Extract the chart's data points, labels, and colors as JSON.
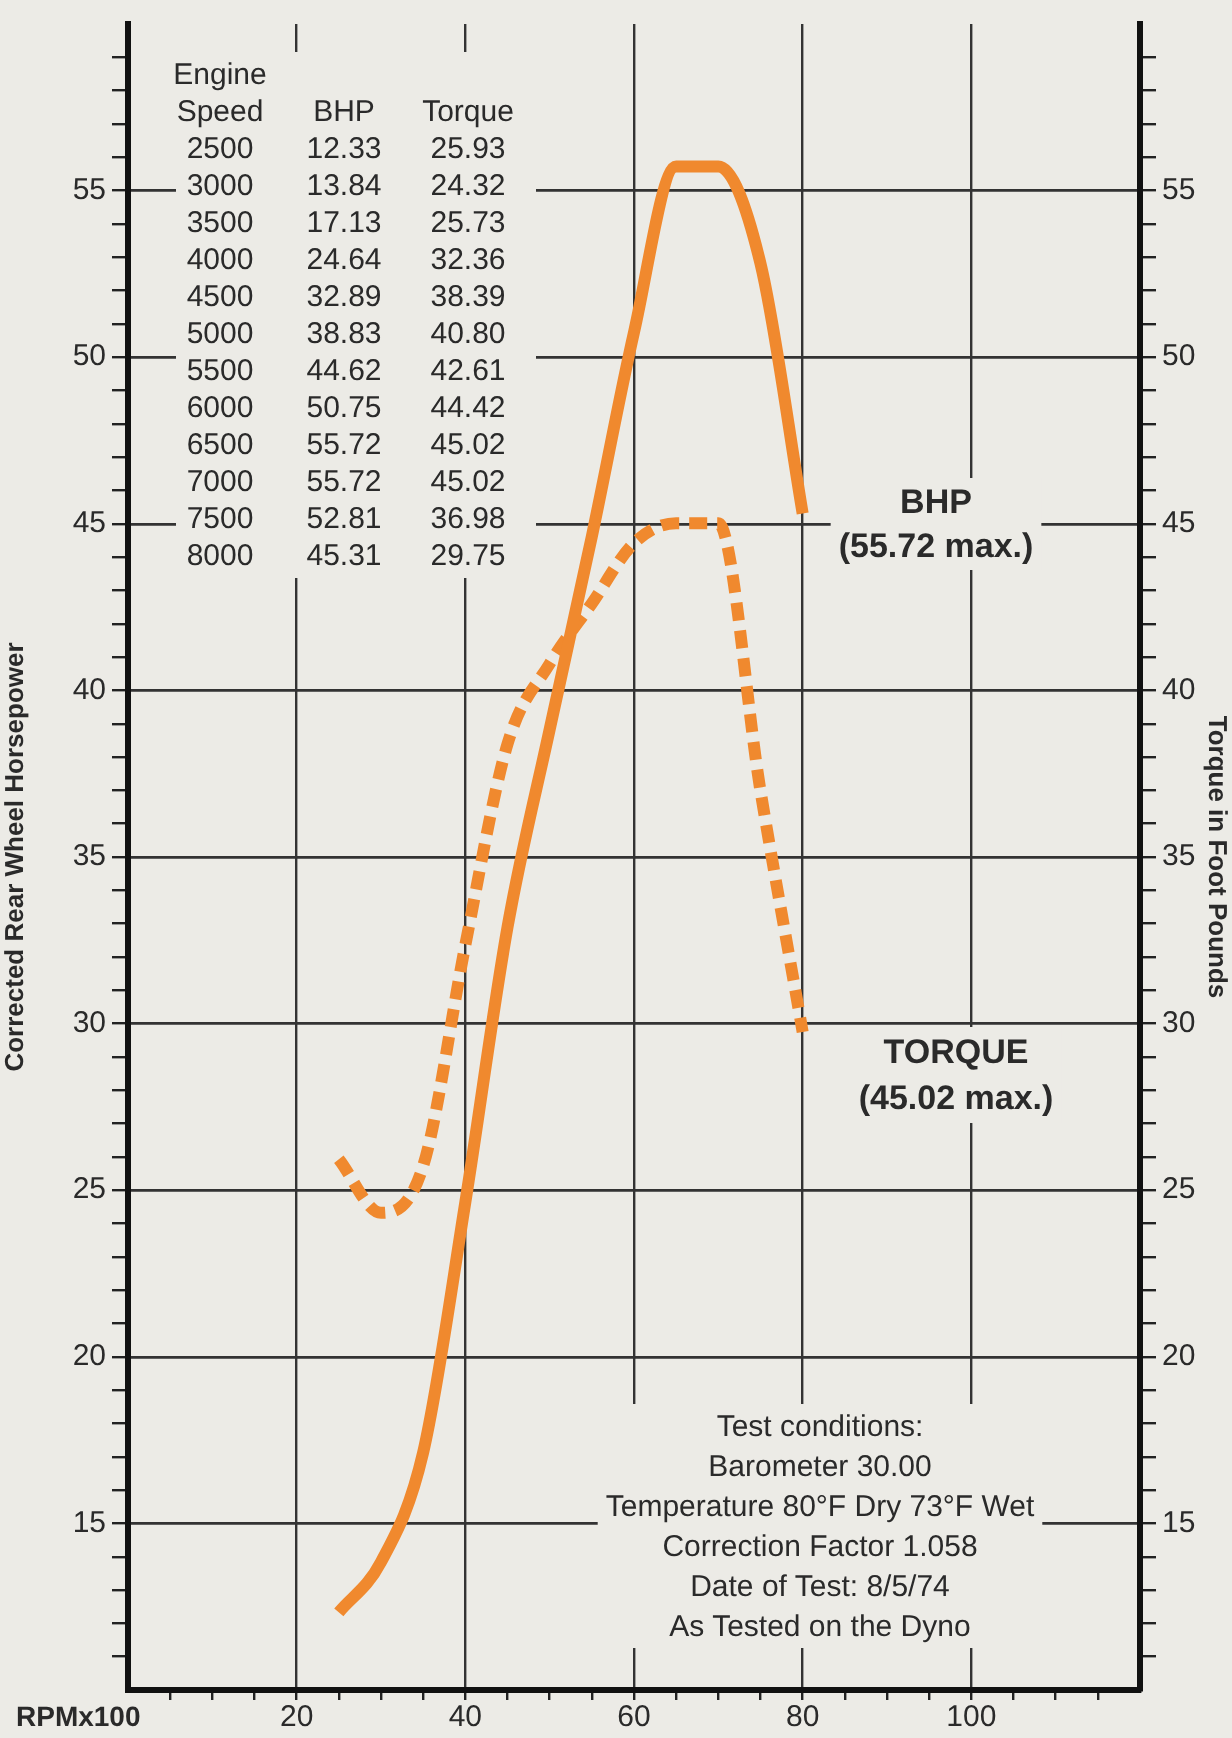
{
  "chart_data": {
    "type": "line",
    "ylabel": "Corrected Rear Wheel Horsepower",
    "y2label": "Torque in Foot Pounds",
    "xlabel": "RPMx100",
    "x": [
      25,
      30,
      35,
      40,
      45,
      50,
      55,
      60,
      65,
      70,
      75,
      80
    ],
    "series": [
      {
        "color": "#f0892e",
        "line_style": "solid",
        "values": [
          12.33,
          13.84,
          17.13,
          24.64,
          32.89,
          38.83,
          44.62,
          50.75,
          55.72,
          55.72,
          52.81,
          45.31
        ]
      },
      {
        "color": "#f0892e",
        "line_style": "dashed",
        "axis": "y2",
        "values": [
          25.93,
          24.32,
          25.73,
          32.36,
          38.39,
          40.8,
          42.61,
          44.42,
          45.02,
          45.02,
          36.98,
          29.75
        ]
      }
    ],
    "xlim": [
      0,
      120
    ],
    "xticks": [
      {
        "value": 5,
        "label": null
      },
      {
        "value": 10,
        "label": null
      },
      {
        "value": 15,
        "label": null
      },
      20,
      {
        "value": 25,
        "label": null
      },
      {
        "value": 30,
        "label": null
      },
      {
        "value": 35,
        "label": null
      },
      40,
      {
        "value": 45,
        "label": null
      },
      {
        "value": 50,
        "label": null
      },
      {
        "value": 55,
        "label": null
      },
      60,
      {
        "value": 65,
        "label": null
      },
      {
        "value": 70,
        "label": null
      },
      {
        "value": 75,
        "label": null
      },
      80,
      {
        "value": 85,
        "label": null
      },
      {
        "value": 90,
        "label": null
      },
      {
        "value": 95,
        "label": null
      },
      100,
      {
        "value": 105,
        "label": null
      },
      {
        "value": 110,
        "label": null
      },
      {
        "value": 115,
        "label": null
      }
    ],
    "ylim": [
      10,
      60
    ],
    "yticks": [
      {
        "value": 11,
        "label": null
      },
      {
        "value": 12,
        "label": null
      },
      {
        "value": 13,
        "label": null
      },
      {
        "value": 14,
        "label": null
      },
      15,
      {
        "value": 16,
        "label": null
      },
      {
        "value": 17,
        "label": null
      },
      {
        "value": 18,
        "label": null
      },
      {
        "value": 19,
        "label": null
      },
      20,
      {
        "value": 21,
        "label": null
      },
      {
        "value": 22,
        "label": null
      },
      {
        "value": 23,
        "label": null
      },
      {
        "value": 24,
        "label": null
      },
      25,
      {
        "value": 26,
        "label": null
      },
      {
        "value": 27,
        "label": null
      },
      {
        "value": 28,
        "label": null
      },
      {
        "value": 29,
        "label": null
      },
      30,
      {
        "value": 31,
        "label": null
      },
      {
        "value": 32,
        "label": null
      },
      {
        "value": 33,
        "label": null
      },
      {
        "value": 34,
        "label": null
      },
      35,
      {
        "value": 36,
        "label": null
      },
      {
        "value": 37,
        "label": null
      },
      {
        "value": 38,
        "label": null
      },
      {
        "value": 39,
        "label": null
      },
      40,
      {
        "value": 41,
        "label": null
      },
      {
        "value": 42,
        "label": null
      },
      {
        "value": 43,
        "label": null
      },
      {
        "value": 44,
        "label": null
      },
      45,
      {
        "value": 46,
        "label": null
      },
      {
        "value": 47,
        "label": null
      },
      {
        "value": 48,
        "label": null
      },
      {
        "value": 49,
        "label": null
      },
      50,
      {
        "value": 51,
        "label": null
      },
      {
        "value": 52,
        "label": null
      },
      {
        "value": 53,
        "label": null
      },
      {
        "value": 54,
        "label": null
      },
      55,
      {
        "value": 56,
        "label": null
      },
      {
        "value": 57,
        "label": null
      },
      {
        "value": 58,
        "label": null
      },
      {
        "value": 59,
        "label": null
      }
    ],
    "y2lim": [
      10,
      60
    ],
    "y2ticks": [
      {
        "value": 11,
        "label": null
      },
      {
        "value": 12,
        "label": null
      },
      {
        "value": 13,
        "label": null
      },
      {
        "value": 14,
        "label": null
      },
      15,
      {
        "value": 16,
        "label": null
      },
      {
        "value": 17,
        "label": null
      },
      {
        "value": 18,
        "label": null
      },
      {
        "value": 19,
        "label": null
      },
      20,
      {
        "value": 21,
        "label": null
      },
      {
        "value": 22,
        "label": null
      },
      {
        "value": 23,
        "label": null
      },
      {
        "value": 24,
        "label": null
      },
      25,
      {
        "value": 26,
        "label": null
      },
      {
        "value": 27,
        "label": null
      },
      {
        "value": 28,
        "label": null
      },
      {
        "value": 29,
        "label": null
      },
      30,
      {
        "value": 31,
        "label": null
      },
      {
        "value": 32,
        "label": null
      },
      {
        "value": 33,
        "label": null
      },
      {
        "value": 34,
        "label": null
      },
      35,
      {
        "value": 36,
        "label": null
      },
      {
        "value": 37,
        "label": null
      },
      {
        "value": 38,
        "label": null
      },
      {
        "value": 39,
        "label": null
      },
      40,
      {
        "value": 41,
        "label": null
      },
      {
        "value": 42,
        "label": null
      },
      {
        "value": 43,
        "label": null
      },
      {
        "value": 44,
        "label": null
      },
      45,
      {
        "value": 46,
        "label": null
      },
      {
        "value": 47,
        "label": null
      },
      {
        "value": 48,
        "label": null
      },
      {
        "value": 49,
        "label": null
      },
      50,
      {
        "value": 51,
        "label": null
      },
      {
        "value": 52,
        "label": null
      },
      {
        "value": 53,
        "label": null
      },
      {
        "value": 54,
        "label": null
      },
      55,
      {
        "value": 56,
        "label": null
      },
      {
        "value": 57,
        "label": null
      },
      {
        "value": 58,
        "label": null
      },
      {
        "value": 59,
        "label": null
      }
    ],
    "grid": true,
    "legend": false,
    "marker": "none",
    "annotations": [
      "Engine\nSpeed\n2500\n3000\n3500\n4000\n4500\n5000\n5500\n6000\n6500\n7000\n7500\n8000",
      "BHP\n12.33\n13.84\n17.13\n24.64\n32.89\n38.83\n44.62\n50.75\n55.72\n55.72\n52.81\n45.31",
      "Torque\n25.93\n24.32\n25.73\n32.36\n38.39\n40.80\n42.61\n44.42\n45.02\n45.02\n36.98\n29.75",
      "BHP\n(55.72 max.)",
      "TORQUE\n(45.02 max.)",
      "Test conditions:\nBarometer 30.00\nTemperature 80°F Dry 73°F Wet\nCorrection Factor 1.058\nDate of Test: 8/5/74\nAs Tested on the Dyno"
    ]
  }
}
